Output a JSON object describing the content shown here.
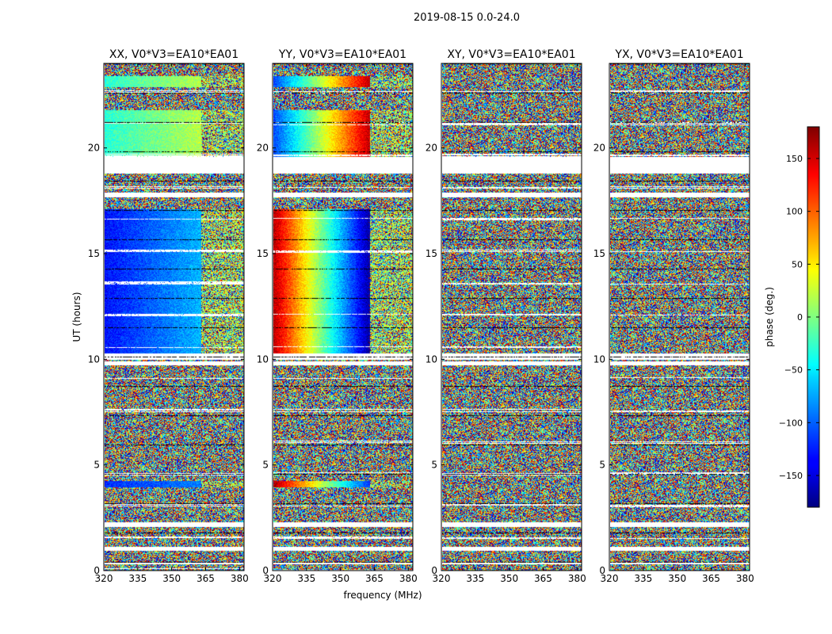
{
  "chart_data": {
    "type": "heatmap",
    "suptitle": "2019-08-15 0.0-24.0",
    "xlabel": "frequency (MHz)",
    "ylabel": "UT (hours)",
    "xlim": [
      320,
      382
    ],
    "ylim": [
      0,
      24
    ],
    "xticks": [
      320,
      335,
      350,
      365,
      380
    ],
    "yticks": [
      0,
      5,
      10,
      15,
      20
    ],
    "panels": [
      {
        "title": "XX, V0*V3=EA10*EA01",
        "pol": "XX",
        "band_phase": {
          "day": [
            -30,
            20
          ],
          "night": [
            -130,
            -70
          ],
          "mid": [
            -120,
            -90
          ]
        }
      },
      {
        "title": "YY, V0*V3=EA10*EA01",
        "pol": "YY",
        "band_phase": {
          "day": [
            -110,
            160
          ],
          "night": [
            160,
            -170
          ],
          "mid": [
            165,
            -120
          ]
        }
      },
      {
        "title": "XY, V0*V3=EA10*EA01",
        "pol": "XY",
        "band_phase": null
      },
      {
        "title": "YX, V0*V3=EA10*EA01",
        "pol": "YX",
        "band_phase": null
      }
    ],
    "colorbar": {
      "label": "phase (deg.)",
      "vmin": -180,
      "vmax": 180,
      "ticks": [
        -150,
        -100,
        -50,
        0,
        50,
        100,
        150
      ],
      "tick_labels": [
        "−150",
        "−100",
        "−50",
        "0",
        "50",
        "100",
        "150"
      ],
      "colormap": "jet"
    },
    "flagged_hours": [
      [
        19.6,
        18.8
      ],
      [
        17.9,
        17.7
      ],
      [
        10.3,
        10.0
      ],
      [
        9.9,
        9.75
      ],
      [
        2.3,
        2.1
      ],
      [
        1.15,
        0.95
      ],
      [
        0.4,
        0.3
      ]
    ],
    "band_edges_mhz": [
      320,
      363,
      382
    ]
  }
}
